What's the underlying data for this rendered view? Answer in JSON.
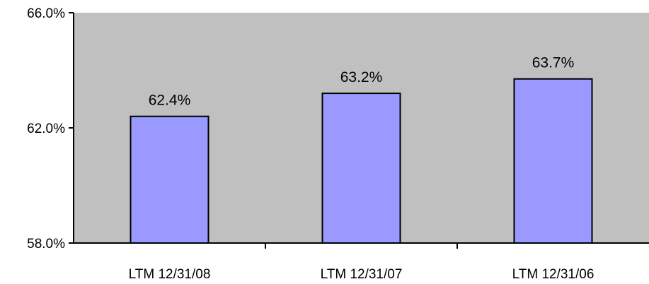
{
  "chart_data": {
    "type": "bar",
    "categories": [
      "LTM 12/31/08",
      "LTM 12/31/07",
      "LTM 12/31/06"
    ],
    "values": [
      62.4,
      63.2,
      63.7
    ],
    "data_labels": [
      "62.4%",
      "63.2%",
      "63.7%"
    ],
    "title": "",
    "xlabel": "",
    "ylabel": "",
    "ylim": [
      58.0,
      66.0
    ],
    "yticks": [
      58.0,
      62.0,
      66.0
    ],
    "ytick_labels": [
      "58.0%",
      "62.0%",
      "66.0%"
    ],
    "grid": false,
    "legend": "none",
    "colors": {
      "plot_background": "#c0c0c0",
      "bar_fill": "#9999ff",
      "bar_stroke": "#000000",
      "axis": "#000000"
    }
  }
}
